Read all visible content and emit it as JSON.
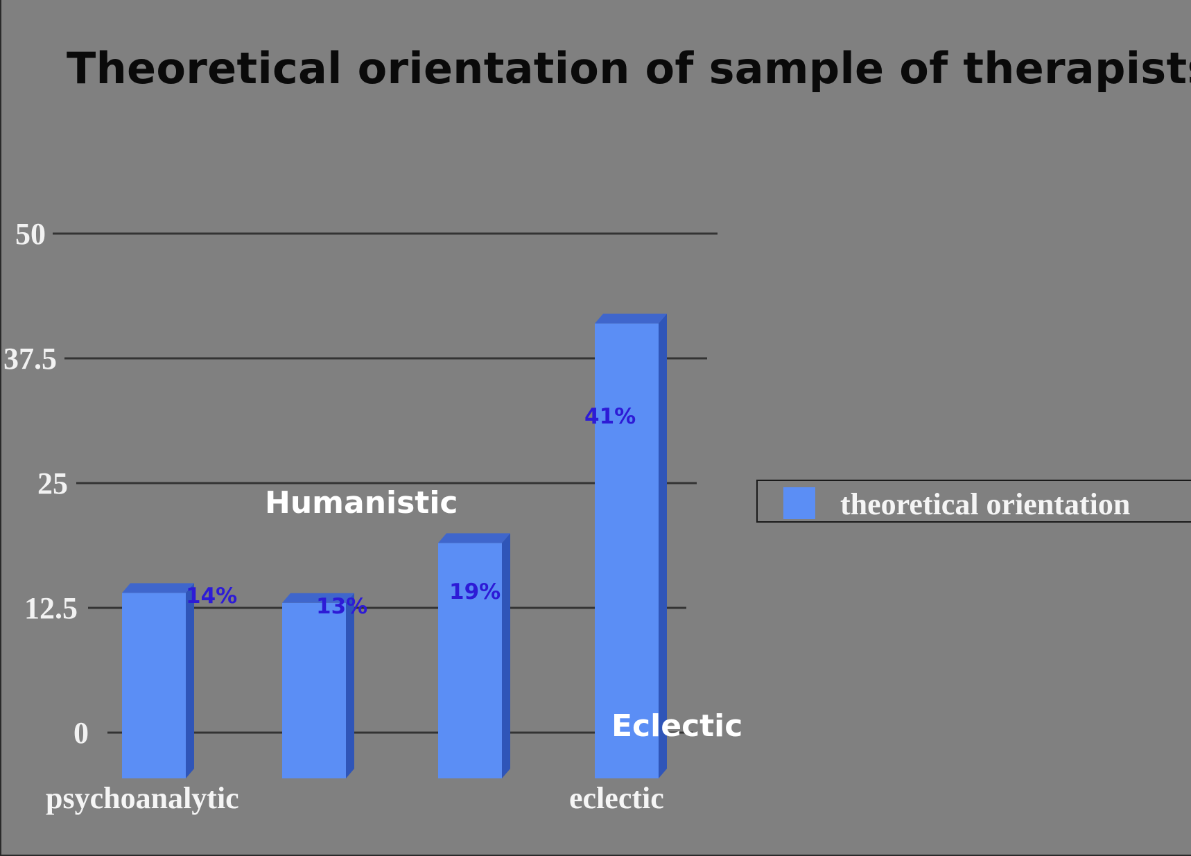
{
  "chart_data": {
    "type": "bar",
    "title": "Theoretical orientation of sample of therapists",
    "categories": [
      "psychoanalytic",
      "",
      "",
      "eclectic"
    ],
    "series": [
      {
        "name": "theoretical orientation",
        "values": [
          14,
          13,
          19,
          41
        ]
      }
    ],
    "data_labels": [
      "14%",
      "13%",
      "19%",
      "41%"
    ],
    "y_ticks": [
      "0",
      "12.5",
      "25",
      "37.5",
      "50"
    ],
    "ylim": [
      0,
      50
    ],
    "xlabel": "",
    "ylabel": "",
    "annotations": [
      "Humanistic",
      "Eclectic"
    ],
    "grid": true,
    "legend_position": "right",
    "colors": {
      "bar": "#5b8ef5",
      "bar_dark": "#2f55b8",
      "bar_top": "#3f66cc",
      "grid": "#333333",
      "data_label": "#2d1bd6"
    }
  }
}
